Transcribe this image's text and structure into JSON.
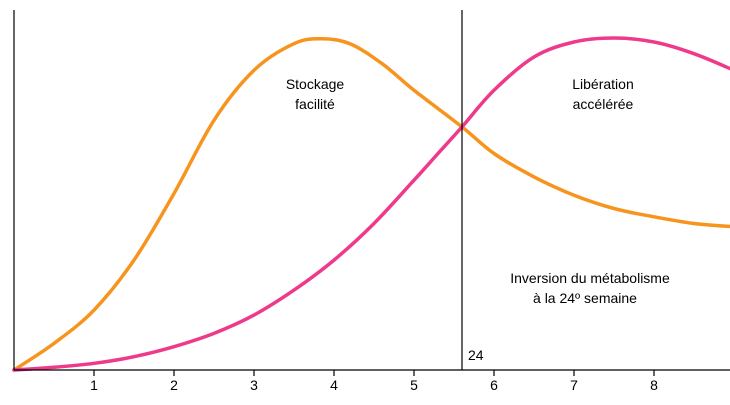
{
  "chart_data": {
    "type": "line",
    "xlim": [
      0,
      9
    ],
    "ylim": [
      0,
      100
    ],
    "x_ticks": [
      1,
      2,
      3,
      4,
      5,
      6,
      7,
      8
    ],
    "x_tick_labels": [
      "1",
      "2",
      "3",
      "4",
      "5",
      "6",
      "7",
      "8"
    ],
    "grid": false,
    "legend": "none",
    "series": [
      {
        "color": "#f7941d",
        "x": [
          0,
          0.5,
          1,
          1.5,
          2,
          2.5,
          3,
          3.5,
          3.85,
          4.2,
          4.6,
          5,
          5.6,
          6,
          6.5,
          7,
          7.5,
          8,
          8.5,
          9
        ],
        "y": [
          0,
          8,
          18,
          33,
          53,
          75,
          90,
          98,
          99.5,
          98,
          92,
          84,
          73,
          65,
          58,
          52.5,
          48.5,
          46,
          44,
          43
        ]
      },
      {
        "color": "#ef3a8c",
        "x": [
          0,
          0.5,
          1,
          1.5,
          2,
          2.5,
          3,
          3.5,
          4,
          4.5,
          5,
          5.3,
          5.6,
          6,
          6.5,
          7,
          7.5,
          8,
          8.5,
          9
        ],
        "y": [
          0,
          0.8,
          2,
          4,
          7,
          11,
          16.5,
          24,
          33,
          44,
          57,
          65,
          73,
          84,
          94,
          98.5,
          99.7,
          98.5,
          95,
          90
        ]
      }
    ],
    "vertical_line": {
      "x": 5.6,
      "label": "24"
    },
    "annotations": [
      {
        "lines": [
          "Stockage",
          "facilité"
        ]
      },
      {
        "lines": [
          "Libération",
          "accélérée"
        ]
      },
      {
        "lines": [
          "Inversion du métabolisme",
          "à la 24º semaine"
        ]
      }
    ]
  },
  "colors": {
    "axis": "#000000",
    "background": "#ffffff"
  }
}
